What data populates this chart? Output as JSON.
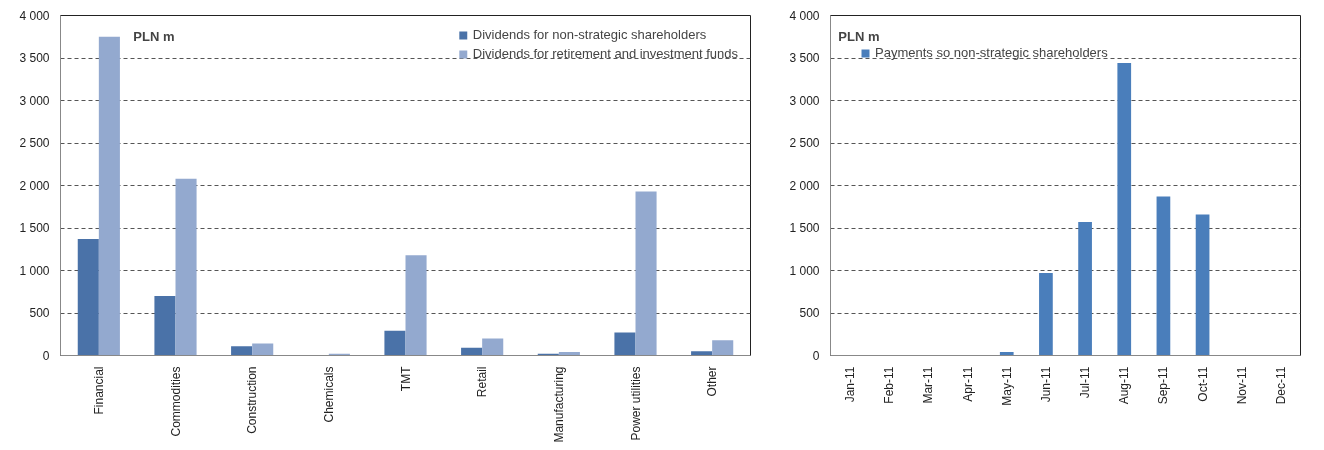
{
  "chart_data": [
    {
      "type": "bar",
      "annotations": [
        "PLN m"
      ],
      "categories": [
        "Financial",
        "Commodities",
        "Construction",
        "Chemicals",
        "TMT",
        "Retail",
        "Manufacturing",
        "Power utilities",
        "Other"
      ],
      "series": [
        {
          "name": "Dividends for non-strategic shareholders",
          "color": "#4a72a8",
          "values": [
            1370,
            700,
            110,
            0,
            290,
            90,
            20,
            270,
            50
          ]
        },
        {
          "name": "Dividends for retirement and investment funds",
          "color": "#93a9cf",
          "values": [
            3750,
            2080,
            140,
            20,
            1180,
            200,
            40,
            1930,
            180
          ]
        }
      ],
      "ylim": [
        0,
        4000
      ],
      "yticks": [
        0,
        500,
        {
          "value": 1000,
          "label": "1 000"
        },
        {
          "value": 1500,
          "label": "1 500"
        },
        {
          "value": 2000,
          "label": "2 000"
        },
        {
          "value": 2500,
          "label": "2 500"
        },
        {
          "value": 3000,
          "label": "3 000"
        },
        {
          "value": 3500,
          "label": "3 500"
        },
        {
          "value": 4000,
          "label": "4 000"
        }
      ],
      "grid": "y",
      "legend": "top right"
    },
    {
      "type": "bar",
      "annotations": [
        "PLN m"
      ],
      "categories": [
        "Jan-11",
        "Feb-11",
        "Mar-11",
        "Apr-11",
        "May-11",
        "Jun-11",
        "Jul-11",
        "Aug-11",
        "Sep-11",
        "Oct-11",
        "Nov-11",
        "Dec-11"
      ],
      "series": [
        {
          "name": "Payments so non-strategic shareholders",
          "color": "#4a7ebb",
          "values": [
            0,
            0,
            0,
            0,
            40,
            970,
            1570,
            3440,
            1870,
            1660,
            0,
            0
          ]
        }
      ],
      "ylim": [
        0,
        4000
      ],
      "yticks": [
        0,
        500,
        {
          "value": 1000,
          "label": "1 000"
        },
        {
          "value": 1500,
          "label": "1 500"
        },
        {
          "value": 2000,
          "label": "2 000"
        },
        {
          "value": 2500,
          "label": "2 500"
        },
        {
          "value": 3000,
          "label": "3 000"
        },
        {
          "value": 3500,
          "label": "3 500"
        },
        {
          "value": 4000,
          "label": "4 000"
        }
      ],
      "grid": "y",
      "legend": "top left"
    }
  ]
}
